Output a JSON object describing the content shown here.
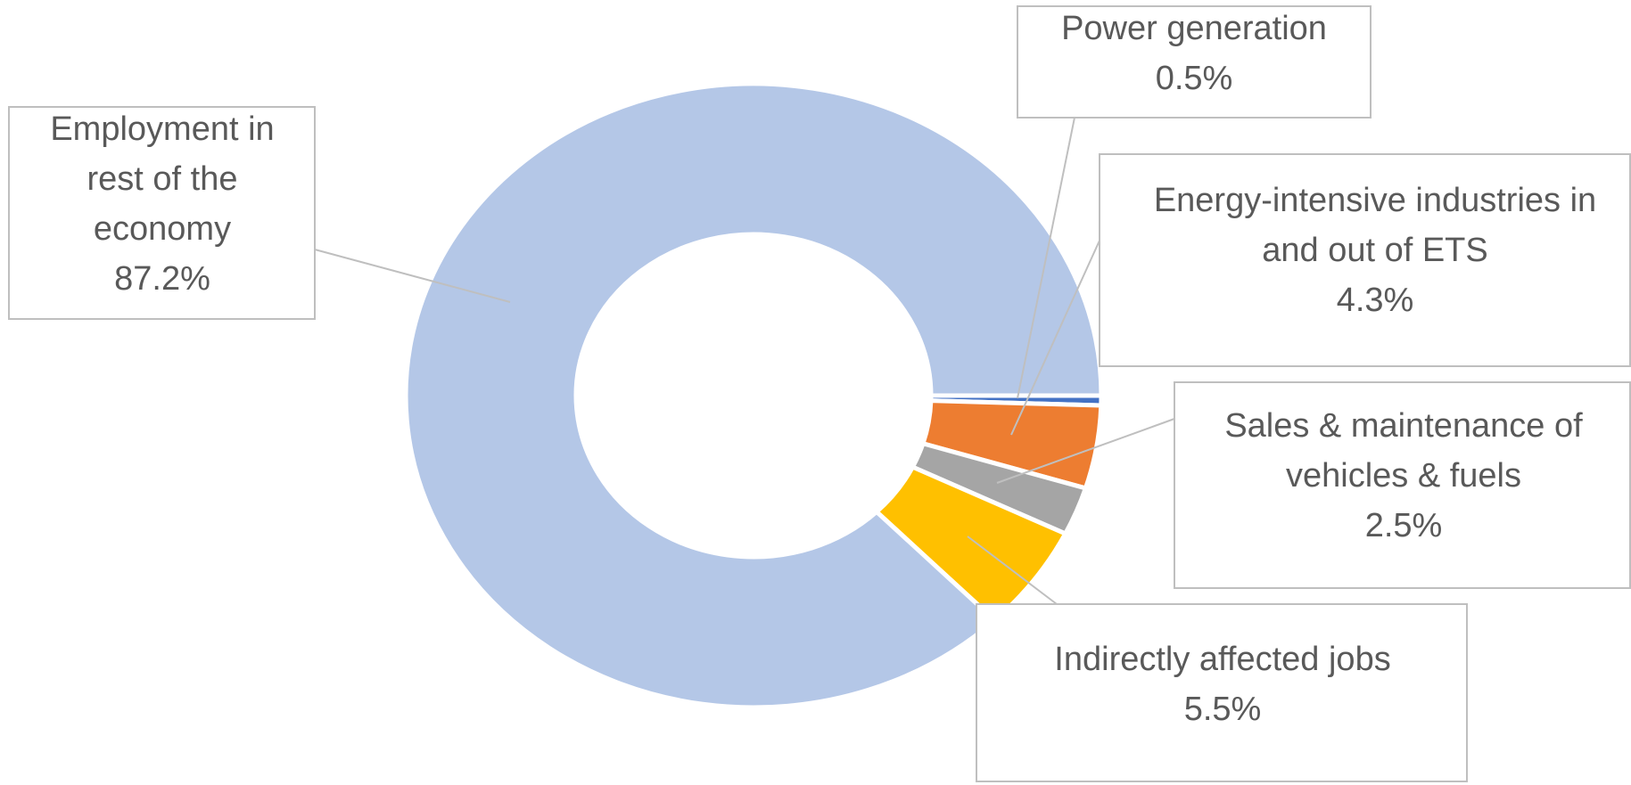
{
  "chart_data": {
    "type": "donut",
    "categories": [
      "Power generation",
      "Energy-intensive industries in and out of ETS",
      "Sales & maintenance of vehicles & fuels",
      "Indirectly affected jobs",
      "Employment in rest of the economy"
    ],
    "values": [
      0.5,
      4.3,
      2.5,
      5.5,
      87.2
    ],
    "value_labels": [
      "0.5%",
      "4.3%",
      "2.5%",
      "5.5%",
      "87.2%"
    ],
    "colors": [
      "#4472c4",
      "#ed7d31",
      "#a5a5a5",
      "#ffc000",
      "#b4c7e7"
    ]
  }
}
